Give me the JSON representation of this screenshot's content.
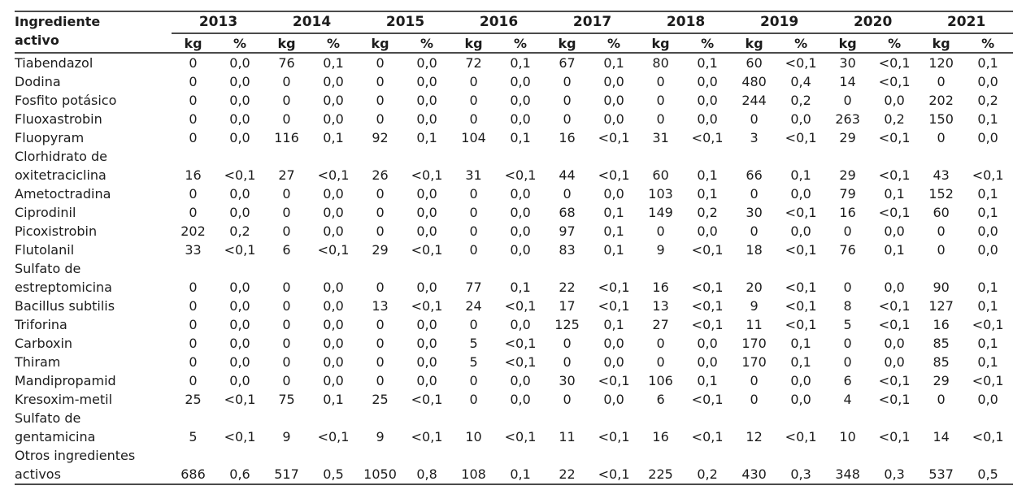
{
  "table": {
    "header": {
      "line1": "Ingrediente",
      "line2": "activo",
      "label_full": "Ingrediente\nactivo"
    },
    "years": [
      "2013",
      "2014",
      "2015",
      "2016",
      "2017",
      "2018",
      "2019",
      "2020",
      "2021"
    ],
    "units": {
      "kg": "kg",
      "pct": "%"
    },
    "colors": {
      "text": "#1c1c1c",
      "rule": "#4b4b4b",
      "background": "#ffffff"
    },
    "rows": [
      {
        "label": "Tiabendazol",
        "values": [
          "0",
          "0,0",
          "76",
          "0,1",
          "0",
          "0,0",
          "72",
          "0,1",
          "67",
          "0,1",
          "80",
          "0,1",
          "60",
          "<0,1",
          "30",
          "<0,1",
          "120",
          "0,1"
        ]
      },
      {
        "label": "Dodina",
        "values": [
          "0",
          "0,0",
          "0",
          "0,0",
          "0",
          "0,0",
          "0",
          "0,0",
          "0",
          "0,0",
          "0",
          "0,0",
          "480",
          "0,4",
          "14",
          "<0,1",
          "0",
          "0,0"
        ]
      },
      {
        "label": "Fosfito potásico",
        "values": [
          "0",
          "0,0",
          "0",
          "0,0",
          "0",
          "0,0",
          "0",
          "0,0",
          "0",
          "0,0",
          "0",
          "0,0",
          "244",
          "0,2",
          "0",
          "0,0",
          "202",
          "0,2"
        ]
      },
      {
        "label": "Fluoxastrobin",
        "values": [
          "0",
          "0,0",
          "0",
          "0,0",
          "0",
          "0,0",
          "0",
          "0,0",
          "0",
          "0,0",
          "0",
          "0,0",
          "0",
          "0,0",
          "263",
          "0,2",
          "150",
          "0,1"
        ]
      },
      {
        "label": "Fluopyram",
        "values": [
          "0",
          "0,0",
          "116",
          "0,1",
          "92",
          "0,1",
          "104",
          "0,1",
          "16",
          "<0,1",
          "31",
          "<0,1",
          "3",
          "<0,1",
          "29",
          "<0,1",
          "0",
          "0,0"
        ]
      },
      {
        "label": "Clorhidrato de\noxitetraciclina",
        "values": [
          "16",
          "<0,1",
          "27",
          "<0,1",
          "26",
          "<0,1",
          "31",
          "<0,1",
          "44",
          "<0,1",
          "60",
          "0,1",
          "66",
          "0,1",
          "29",
          "<0,1",
          "43",
          "<0,1"
        ]
      },
      {
        "label": "Ametoctradina",
        "values": [
          "0",
          "0,0",
          "0",
          "0,0",
          "0",
          "0,0",
          "0",
          "0,0",
          "0",
          "0,0",
          "103",
          "0,1",
          "0",
          "0,0",
          "79",
          "0,1",
          "152",
          "0,1"
        ]
      },
      {
        "label": "Ciprodinil",
        "values": [
          "0",
          "0,0",
          "0",
          "0,0",
          "0",
          "0,0",
          "0",
          "0,0",
          "68",
          "0,1",
          "149",
          "0,2",
          "30",
          "<0,1",
          "16",
          "<0,1",
          "60",
          "0,1"
        ]
      },
      {
        "label": "Picoxistrobin",
        "values": [
          "202",
          "0,2",
          "0",
          "0,0",
          "0",
          "0,0",
          "0",
          "0,0",
          "97",
          "0,1",
          "0",
          "0,0",
          "0",
          "0,0",
          "0",
          "0,0",
          "0",
          "0,0"
        ]
      },
      {
        "label": "Flutolanil",
        "values": [
          "33",
          "<0,1",
          "6",
          "<0,1",
          "29",
          "<0,1",
          "0",
          "0,0",
          "83",
          "0,1",
          "9",
          "<0,1",
          "18",
          "<0,1",
          "76",
          "0,1",
          "0",
          "0,0"
        ]
      },
      {
        "label": "Sulfato de\nestreptomicina",
        "values": [
          "0",
          "0,0",
          "0",
          "0,0",
          "0",
          "0,0",
          "77",
          "0,1",
          "22",
          "<0,1",
          "16",
          "<0,1",
          "20",
          "<0,1",
          "0",
          "0,0",
          "90",
          "0,1"
        ]
      },
      {
        "label": "Bacillus subtilis",
        "values": [
          "0",
          "0,0",
          "0",
          "0,0",
          "13",
          "<0,1",
          "24",
          "<0,1",
          "17",
          "<0,1",
          "13",
          "<0,1",
          "9",
          "<0,1",
          "8",
          "<0,1",
          "127",
          "0,1"
        ]
      },
      {
        "label": "Triforina",
        "values": [
          "0",
          "0,0",
          "0",
          "0,0",
          "0",
          "0,0",
          "0",
          "0,0",
          "125",
          "0,1",
          "27",
          "<0,1",
          "11",
          "<0,1",
          "5",
          "<0,1",
          "16",
          "<0,1"
        ]
      },
      {
        "label": "Carboxin",
        "values": [
          "0",
          "0,0",
          "0",
          "0,0",
          "0",
          "0,0",
          "5",
          "<0,1",
          "0",
          "0,0",
          "0",
          "0,0",
          "170",
          "0,1",
          "0",
          "0,0",
          "85",
          "0,1"
        ]
      },
      {
        "label": "Thiram",
        "values": [
          "0",
          "0,0",
          "0",
          "0,0",
          "0",
          "0,0",
          "5",
          "<0,1",
          "0",
          "0,0",
          "0",
          "0,0",
          "170",
          "0,1",
          "0",
          "0,0",
          "85",
          "0,1"
        ]
      },
      {
        "label": "Mandipropamid",
        "values": [
          "0",
          "0,0",
          "0",
          "0,0",
          "0",
          "0,0",
          "0",
          "0,0",
          "30",
          "<0,1",
          "106",
          "0,1",
          "0",
          "0,0",
          "6",
          "<0,1",
          "29",
          "<0,1"
        ]
      },
      {
        "label": "Kresoxim-metil",
        "values": [
          "25",
          "<0,1",
          "75",
          "0,1",
          "25",
          "<0,1",
          "0",
          "0,0",
          "0",
          "0,0",
          "6",
          "<0,1",
          "0",
          "0,0",
          "4",
          "<0,1",
          "0",
          "0,0"
        ]
      },
      {
        "label": "Sulfato de\ngentamicina",
        "values": [
          "5",
          "<0,1",
          "9",
          "<0,1",
          "9",
          "<0,1",
          "10",
          "<0,1",
          "11",
          "<0,1",
          "16",
          "<0,1",
          "12",
          "<0,1",
          "10",
          "<0,1",
          "14",
          "<0,1"
        ]
      },
      {
        "label": "Otros ingredientes\nactivos",
        "values": [
          "686",
          "0,6",
          "517",
          "0,5",
          "1050",
          "0,8",
          "108",
          "0,1",
          "22",
          "<0,1",
          "225",
          "0,2",
          "430",
          "0,3",
          "348",
          "0,3",
          "537",
          "0,5"
        ]
      }
    ]
  }
}
